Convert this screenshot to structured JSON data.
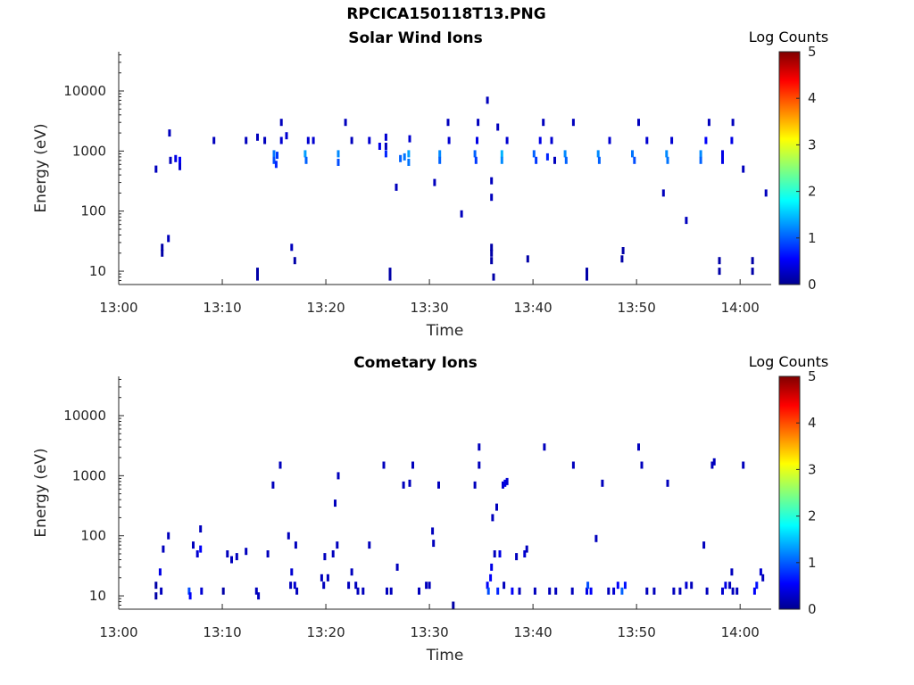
{
  "figure_title": "RPCICA150118T13.PNG",
  "chart_data": [
    {
      "type": "heatmap",
      "title": "Solar Wind Ions",
      "xlabel": "Time",
      "ylabel": "Energy (eV)",
      "y_scale": "log",
      "ylim": [
        6,
        45000
      ],
      "xlim": [
        "13:00",
        "14:03"
      ],
      "x_ticks": [
        "13:00",
        "13:10",
        "13:20",
        "13:30",
        "13:40",
        "13:50",
        "14:00"
      ],
      "y_ticks": [
        "10",
        "100",
        "1000",
        "10000"
      ],
      "colorbar": {
        "label": "Log Counts",
        "range": [
          0,
          5
        ],
        "ticks": [
          "0",
          "1",
          "2",
          "3",
          "4",
          "5"
        ],
        "colormap": "jet"
      },
      "cells": [
        [
          3.6,
          500,
          0.3
        ],
        [
          4.2,
          25,
          0.2
        ],
        [
          4.2,
          20,
          0.2
        ],
        [
          4.8,
          35,
          0.3
        ],
        [
          4.9,
          2000,
          0.3
        ],
        [
          5.0,
          700,
          0.3
        ],
        [
          5.5,
          750,
          0.5
        ],
        [
          5.9,
          700,
          0.6
        ],
        [
          5.9,
          550,
          0.4
        ],
        [
          9.2,
          1500,
          0.3
        ],
        [
          12.3,
          1500,
          0.3
        ],
        [
          13.4,
          1700,
          0.3
        ],
        [
          13.4,
          10,
          0.2
        ],
        [
          13.4,
          8,
          0.2
        ],
        [
          14.1,
          1500,
          0.3
        ],
        [
          15.0,
          900,
          1.2
        ],
        [
          15.0,
          700,
          1.0
        ],
        [
          15.2,
          600,
          0.8
        ],
        [
          15.3,
          850,
          0.9
        ],
        [
          15.7,
          1500,
          0.4
        ],
        [
          15.7,
          3000,
          0.3
        ],
        [
          16.2,
          1800,
          0.4
        ],
        [
          16.7,
          25,
          0.3
        ],
        [
          17.0,
          15,
          0.2
        ],
        [
          18.0,
          900,
          1.4
        ],
        [
          18.1,
          700,
          1.1
        ],
        [
          18.3,
          1500,
          0.4
        ],
        [
          18.8,
          1500,
          0.4
        ],
        [
          21.2,
          900,
          1.3
        ],
        [
          21.2,
          650,
          1.0
        ],
        [
          21.9,
          3000,
          0.3
        ],
        [
          22.5,
          1500,
          0.3
        ],
        [
          24.2,
          1500,
          0.4
        ],
        [
          25.2,
          1200,
          0.5
        ],
        [
          25.8,
          1700,
          0.4
        ],
        [
          25.8,
          1200,
          0.3
        ],
        [
          25.8,
          900,
          0.8
        ],
        [
          26.2,
          10,
          0.2
        ],
        [
          26.2,
          8,
          0.2
        ],
        [
          26.8,
          250,
          0.3
        ],
        [
          27.2,
          750,
          1.1
        ],
        [
          27.6,
          800,
          1.2
        ],
        [
          28.0,
          900,
          1.4
        ],
        [
          28.0,
          650,
          1.2
        ],
        [
          28.1,
          1600,
          0.4
        ],
        [
          30.5,
          300,
          0.3
        ],
        [
          31.0,
          900,
          1.3
        ],
        [
          31.0,
          700,
          1.1
        ],
        [
          31.8,
          3000,
          0.3
        ],
        [
          31.9,
          1500,
          0.4
        ],
        [
          33.1,
          90,
          0.3
        ],
        [
          34.4,
          900,
          1.1
        ],
        [
          34.5,
          700,
          0.9
        ],
        [
          34.6,
          1500,
          0.5
        ],
        [
          34.7,
          3000,
          0.3
        ],
        [
          35.6,
          7000,
          0.3
        ],
        [
          36.0,
          320,
          0.3
        ],
        [
          36.0,
          170,
          0.3
        ],
        [
          36.0,
          25,
          0.2
        ],
        [
          36.0,
          20,
          0.2
        ],
        [
          36.0,
          15,
          0.2
        ],
        [
          36.2,
          8,
          0.2
        ],
        [
          36.6,
          2500,
          0.3
        ],
        [
          37.0,
          900,
          1.5
        ],
        [
          37.0,
          700,
          1.3
        ],
        [
          37.5,
          1500,
          0.4
        ],
        [
          39.5,
          16,
          0.2
        ],
        [
          40.1,
          900,
          1.1
        ],
        [
          40.3,
          700,
          0.9
        ],
        [
          40.7,
          1500,
          0.5
        ],
        [
          41.0,
          3000,
          0.3
        ],
        [
          41.4,
          800,
          0.8
        ],
        [
          41.8,
          1500,
          0.4
        ],
        [
          42.1,
          700,
          0.3
        ],
        [
          43.1,
          900,
          1.3
        ],
        [
          43.2,
          700,
          1.1
        ],
        [
          43.9,
          3000,
          0.3
        ],
        [
          45.2,
          10,
          0.2
        ],
        [
          45.2,
          8,
          0.2
        ],
        [
          46.3,
          900,
          1.3
        ],
        [
          46.4,
          700,
          1.1
        ],
        [
          47.4,
          1500,
          0.4
        ],
        [
          48.6,
          16,
          0.2
        ],
        [
          48.7,
          22,
          0.2
        ],
        [
          49.6,
          900,
          1.2
        ],
        [
          49.8,
          700,
          1.0
        ],
        [
          50.2,
          3000,
          0.3
        ],
        [
          51.0,
          1500,
          0.4
        ],
        [
          52.6,
          200,
          0.3
        ],
        [
          52.9,
          900,
          1.3
        ],
        [
          53.0,
          700,
          1.2
        ],
        [
          53.4,
          1500,
          0.4
        ],
        [
          54.8,
          70,
          0.3
        ],
        [
          56.2,
          900,
          1.3
        ],
        [
          56.2,
          700,
          1.1
        ],
        [
          56.7,
          1500,
          0.6
        ],
        [
          57.0,
          3000,
          0.3
        ],
        [
          58.0,
          15,
          0.2
        ],
        [
          58.0,
          10,
          0.2
        ],
        [
          58.3,
          700,
          0.5
        ],
        [
          58.3,
          900,
          0.5
        ],
        [
          59.2,
          1500,
          0.5
        ],
        [
          59.3,
          3000,
          0.3
        ],
        [
          60.3,
          500,
          0.3
        ],
        [
          61.2,
          15,
          0.2
        ],
        [
          61.2,
          10,
          0.2
        ],
        [
          62.5,
          200,
          0.3
        ]
      ]
    },
    {
      "type": "heatmap",
      "title": "Cometary Ions",
      "xlabel": "Time",
      "ylabel": "Energy (eV)",
      "y_scale": "log",
      "ylim": [
        6,
        45000
      ],
      "xlim": [
        "13:00",
        "14:03"
      ],
      "x_ticks": [
        "13:00",
        "13:10",
        "13:20",
        "13:30",
        "13:40",
        "13:50",
        "14:00"
      ],
      "y_ticks": [
        "10",
        "100",
        "1000",
        "10000"
      ],
      "colorbar": {
        "label": "Log Counts",
        "range": [
          0,
          5
        ],
        "ticks": [
          "0",
          "1",
          "2",
          "3",
          "4",
          "5"
        ],
        "colormap": "jet"
      },
      "cells": [
        [
          3.6,
          15,
          0.2
        ],
        [
          3.6,
          10,
          0.2
        ],
        [
          4.0,
          25,
          0.5
        ],
        [
          4.1,
          12,
          0.3
        ],
        [
          4.3,
          60,
          0.3
        ],
        [
          4.8,
          100,
          0.3
        ],
        [
          6.8,
          12,
          1.0
        ],
        [
          6.9,
          10,
          0.6
        ],
        [
          7.2,
          70,
          0.3
        ],
        [
          7.6,
          50,
          0.4
        ],
        [
          7.9,
          130,
          0.3
        ],
        [
          7.9,
          60,
          0.6
        ],
        [
          8.0,
          12,
          0.4
        ],
        [
          10.1,
          12,
          0.2
        ],
        [
          10.5,
          50,
          0.3
        ],
        [
          10.9,
          40,
          0.3
        ],
        [
          11.4,
          45,
          0.3
        ],
        [
          12.3,
          55,
          0.3
        ],
        [
          13.3,
          12,
          0.3
        ],
        [
          13.5,
          10,
          0.3
        ],
        [
          14.4,
          50,
          0.3
        ],
        [
          14.9,
          700,
          0.3
        ],
        [
          15.6,
          1500,
          0.3
        ],
        [
          16.4,
          100,
          0.3
        ],
        [
          16.6,
          15,
          0.3
        ],
        [
          16.7,
          25,
          0.4
        ],
        [
          17.0,
          15,
          0.4
        ],
        [
          17.1,
          70,
          0.3
        ],
        [
          17.2,
          12,
          0.3
        ],
        [
          19.6,
          20,
          0.3
        ],
        [
          19.8,
          15,
          0.3
        ],
        [
          19.9,
          45,
          0.3
        ],
        [
          20.2,
          20,
          0.3
        ],
        [
          20.7,
          50,
          0.3
        ],
        [
          20.9,
          350,
          0.3
        ],
        [
          21.1,
          70,
          0.3
        ],
        [
          21.2,
          1000,
          0.3
        ],
        [
          22.2,
          15,
          0.3
        ],
        [
          22.5,
          25,
          0.3
        ],
        [
          22.9,
          15,
          0.3
        ],
        [
          23.1,
          12,
          0.3
        ],
        [
          23.6,
          12,
          0.3
        ],
        [
          24.2,
          70,
          0.3
        ],
        [
          25.6,
          1500,
          0.3
        ],
        [
          25.9,
          12,
          0.3
        ],
        [
          26.3,
          12,
          0.3
        ],
        [
          26.9,
          30,
          0.3
        ],
        [
          27.5,
          700,
          0.3
        ],
        [
          28.1,
          750,
          0.3
        ],
        [
          28.4,
          1500,
          0.3
        ],
        [
          29.0,
          12,
          0.3
        ],
        [
          29.7,
          15,
          0.3
        ],
        [
          30.0,
          15,
          0.3
        ],
        [
          30.3,
          120,
          0.3
        ],
        [
          30.4,
          75,
          0.3
        ],
        [
          30.9,
          700,
          0.3
        ],
        [
          32.3,
          7,
          0.2
        ],
        [
          34.4,
          700,
          0.3
        ],
        [
          34.8,
          1500,
          0.3
        ],
        [
          34.8,
          3000,
          0.3
        ],
        [
          35.6,
          15,
          0.6
        ],
        [
          35.7,
          12,
          1.0
        ],
        [
          35.9,
          20,
          0.6
        ],
        [
          36.0,
          30,
          0.5
        ],
        [
          36.1,
          200,
          0.3
        ],
        [
          36.3,
          50,
          0.3
        ],
        [
          36.5,
          300,
          0.3
        ],
        [
          36.6,
          12,
          0.8
        ],
        [
          36.8,
          50,
          0.5
        ],
        [
          37.1,
          700,
          0.4
        ],
        [
          37.2,
          15,
          0.3
        ],
        [
          37.3,
          750,
          0.5
        ],
        [
          37.5,
          800,
          0.4
        ],
        [
          38.0,
          12,
          0.6
        ],
        [
          38.4,
          45,
          0.3
        ],
        [
          38.7,
          12,
          0.3
        ],
        [
          39.2,
          50,
          0.4
        ],
        [
          39.4,
          60,
          0.3
        ],
        [
          40.2,
          12,
          0.3
        ],
        [
          41.1,
          3000,
          0.3
        ],
        [
          41.6,
          12,
          0.3
        ],
        [
          42.2,
          12,
          0.3
        ],
        [
          43.8,
          12,
          0.3
        ],
        [
          43.9,
          1500,
          0.3
        ],
        [
          45.2,
          12,
          0.5
        ],
        [
          45.3,
          15,
          1.0
        ],
        [
          45.6,
          12,
          0.6
        ],
        [
          46.1,
          90,
          0.3
        ],
        [
          46.7,
          750,
          0.3
        ],
        [
          47.3,
          12,
          0.3
        ],
        [
          47.8,
          12,
          0.4
        ],
        [
          48.2,
          15,
          0.6
        ],
        [
          48.6,
          12,
          1.1
        ],
        [
          48.9,
          15,
          0.7
        ],
        [
          50.2,
          3000,
          0.3
        ],
        [
          50.5,
          1500,
          0.3
        ],
        [
          51.0,
          12,
          0.3
        ],
        [
          51.7,
          12,
          0.3
        ],
        [
          53.0,
          750,
          0.3
        ],
        [
          53.6,
          12,
          0.3
        ],
        [
          54.2,
          12,
          0.3
        ],
        [
          54.8,
          15,
          0.4
        ],
        [
          55.3,
          15,
          0.3
        ],
        [
          56.5,
          70,
          0.3
        ],
        [
          56.8,
          12,
          0.3
        ],
        [
          57.3,
          1500,
          0.3
        ],
        [
          57.5,
          1700,
          0.3
        ],
        [
          58.3,
          12,
          0.4
        ],
        [
          58.6,
          15,
          0.5
        ],
        [
          59.0,
          15,
          0.3
        ],
        [
          59.2,
          25,
          0.3
        ],
        [
          59.3,
          12,
          0.3
        ],
        [
          59.7,
          12,
          0.3
        ],
        [
          60.3,
          1500,
          0.3
        ],
        [
          61.4,
          12,
          0.6
        ],
        [
          61.6,
          15,
          0.7
        ],
        [
          62.0,
          25,
          0.4
        ],
        [
          62.2,
          20,
          0.3
        ]
      ]
    }
  ]
}
